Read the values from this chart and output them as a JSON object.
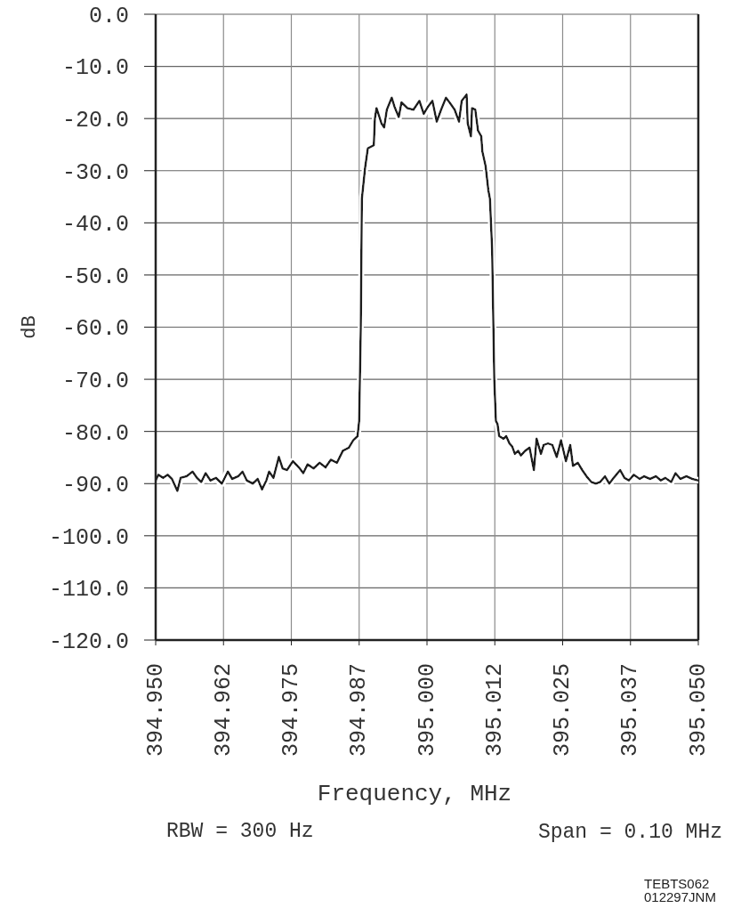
{
  "chart_data": {
    "type": "line",
    "xlabel": "Frequency, MHz",
    "ylabel": "dB",
    "annotations": [
      "RBW = 300 Hz",
      "Span = 0.10 MHz",
      "TEBTS062",
      "012297JNM"
    ],
    "color": "#1a1a1a",
    "x": [
      394.95,
      394.9505,
      394.9514,
      394.9522,
      394.953,
      394.954,
      394.9546,
      394.9557,
      394.9568,
      394.9576,
      394.9584,
      394.9592,
      394.9601,
      394.9611,
      394.9622,
      394.9633,
      394.9641,
      394.9652,
      394.966,
      394.9668,
      394.9679,
      394.9688,
      394.9696,
      394.9704,
      394.9709,
      394.9717,
      394.9727,
      394.9734,
      394.9742,
      394.9753,
      394.9764,
      394.9772,
      394.978,
      394.9791,
      394.9802,
      394.9813,
      394.9823,
      394.9834,
      394.9845,
      394.9856,
      394.9864,
      394.9872,
      394.9875,
      394.9878,
      394.988,
      394.9886,
      394.9891,
      394.9902,
      394.9904,
      394.9907,
      394.9916,
      394.9921,
      394.9926,
      394.9935,
      394.994,
      394.9948,
      394.9953,
      394.9964,
      394.9975,
      394.9986,
      394.9994,
      395.0002,
      395.001,
      395.0018,
      395.0026,
      395.0035,
      395.0043,
      395.0051,
      395.0059,
      395.0064,
      395.0073,
      395.0075,
      395.0081,
      395.0083,
      395.0089,
      395.0094,
      395.01,
      395.0102,
      395.0108,
      395.0113,
      395.0116,
      395.012,
      395.0124,
      395.0127,
      395.013,
      395.0133,
      395.0141,
      395.0146,
      395.0152,
      395.0157,
      395.0162,
      395.0168,
      395.0173,
      395.0181,
      395.0189,
      395.0197,
      395.0202,
      395.021,
      395.0215,
      395.0223,
      395.0231,
      395.0239,
      395.0247,
      395.0256,
      395.0264,
      395.0269,
      395.0278,
      395.0286,
      395.0294,
      395.0303,
      395.0311,
      395.0319,
      395.0328,
      395.0336,
      395.0344,
      395.0356,
      395.0364,
      395.0372,
      395.0381,
      395.0392,
      395.04,
      395.0411,
      395.0422,
      395.0431,
      395.0439,
      395.045,
      395.0458,
      395.0467,
      395.0478,
      395.0489,
      395.05
    ],
    "values": [
      -89.4,
      -88.3,
      -88.9,
      -88.3,
      -89.1,
      -91.4,
      -88.9,
      -88.6,
      -87.7,
      -88.9,
      -89.7,
      -88,
      -89.4,
      -88.9,
      -90,
      -87.7,
      -89.1,
      -88.6,
      -87.7,
      -89.4,
      -90,
      -89.1,
      -91.1,
      -89.4,
      -87.7,
      -88.9,
      -84.9,
      -87.1,
      -87.4,
      -85.7,
      -86.9,
      -88,
      -86.3,
      -87.1,
      -86,
      -86.9,
      -85.4,
      -86,
      -83.7,
      -83.1,
      -81.7,
      -80.9,
      -78,
      -60,
      -35.4,
      -29.4,
      -25.7,
      -25.1,
      -20,
      -18,
      -20.9,
      -21.7,
      -18.3,
      -16,
      -17.7,
      -19.7,
      -16.9,
      -18,
      -18.3,
      -16.6,
      -19.1,
      -17.7,
      -16.6,
      -20.6,
      -18.3,
      -16,
      -17.1,
      -18.3,
      -20.6,
      -16.6,
      -15.4,
      -20.9,
      -23.4,
      -18,
      -18.3,
      -22.3,
      -23.4,
      -26.3,
      -29.1,
      -33.7,
      -35.4,
      -45,
      -70,
      -78,
      -78.6,
      -80.9,
      -81.4,
      -80.9,
      -82.3,
      -82.9,
      -84.3,
      -83.7,
      -84.6,
      -83.7,
      -83.1,
      -87.4,
      -81.4,
      -84.3,
      -82.6,
      -82.3,
      -82.6,
      -84.9,
      -81.7,
      -85.7,
      -82.6,
      -86.6,
      -86,
      -87.4,
      -88.6,
      -89.7,
      -90,
      -89.7,
      -88.6,
      -90,
      -88.9,
      -87.4,
      -88.9,
      -89.4,
      -88.3,
      -89.1,
      -88.6,
      -89.1,
      -88.6,
      -89.4,
      -88.9,
      -89.7,
      -88,
      -89.1,
      -88.6,
      -89.1,
      -89.4
    ],
    "xlim": [
      394.95,
      395.05
    ],
    "xticks": [
      {
        "value": 394.95,
        "label": "394.950"
      },
      {
        "value": 394.9625,
        "label": "394.962"
      },
      {
        "value": 394.975,
        "label": "394.975"
      },
      {
        "value": 394.9875,
        "label": "394.987"
      },
      {
        "value": 395.0,
        "label": "395.000"
      },
      {
        "value": 395.0125,
        "label": "395.012"
      },
      {
        "value": 395.025,
        "label": "395.025"
      },
      {
        "value": 395.0375,
        "label": "395.037"
      },
      {
        "value": 395.05,
        "label": "395.050"
      }
    ],
    "ylim": [
      -120,
      0
    ],
    "yticks": [
      {
        "value": 0,
        "label": "0.0"
      },
      {
        "value": -10,
        "label": "-10.0"
      },
      {
        "value": -20,
        "label": "-20.0"
      },
      {
        "value": -30,
        "label": "-30.0"
      },
      {
        "value": -40,
        "label": "-40.0"
      },
      {
        "value": -50,
        "label": "-50.0"
      },
      {
        "value": -60,
        "label": "-60.0"
      },
      {
        "value": -70,
        "label": "-70.0"
      },
      {
        "value": -80,
        "label": "-80.0"
      },
      {
        "value": -90,
        "label": "-90.0"
      },
      {
        "value": -100,
        "label": "-100.0"
      },
      {
        "value": -110,
        "label": "-110.0"
      },
      {
        "value": -120,
        "label": "-120.0"
      }
    ],
    "grid": true
  }
}
